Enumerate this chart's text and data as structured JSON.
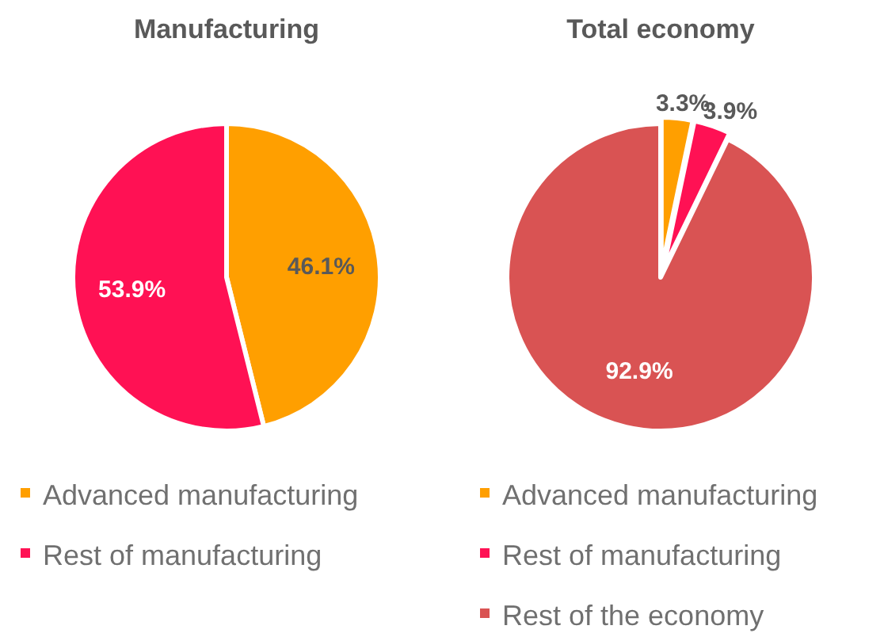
{
  "chart_data": [
    {
      "type": "pie",
      "title": "Manufacturing",
      "categories": [
        "Advanced manufacturing",
        "Rest of manufacturing"
      ],
      "values": [
        46.1,
        53.9
      ],
      "colors": [
        "#ff9f00",
        "#ff1154"
      ],
      "value_labels": [
        "46.1%",
        "53.9%"
      ],
      "legend": "bottom"
    },
    {
      "type": "pie",
      "title": "Total economy",
      "categories": [
        "Advanced manufacturing",
        "Rest of manufacturing",
        "Rest of the economy"
      ],
      "values": [
        3.3,
        3.9,
        92.9
      ],
      "colors": [
        "#ff9f00",
        "#ff1154",
        "#d95353"
      ],
      "value_labels": [
        "3.3%",
        "3.9%",
        "92.9%"
      ],
      "legend": "bottom"
    }
  ]
}
